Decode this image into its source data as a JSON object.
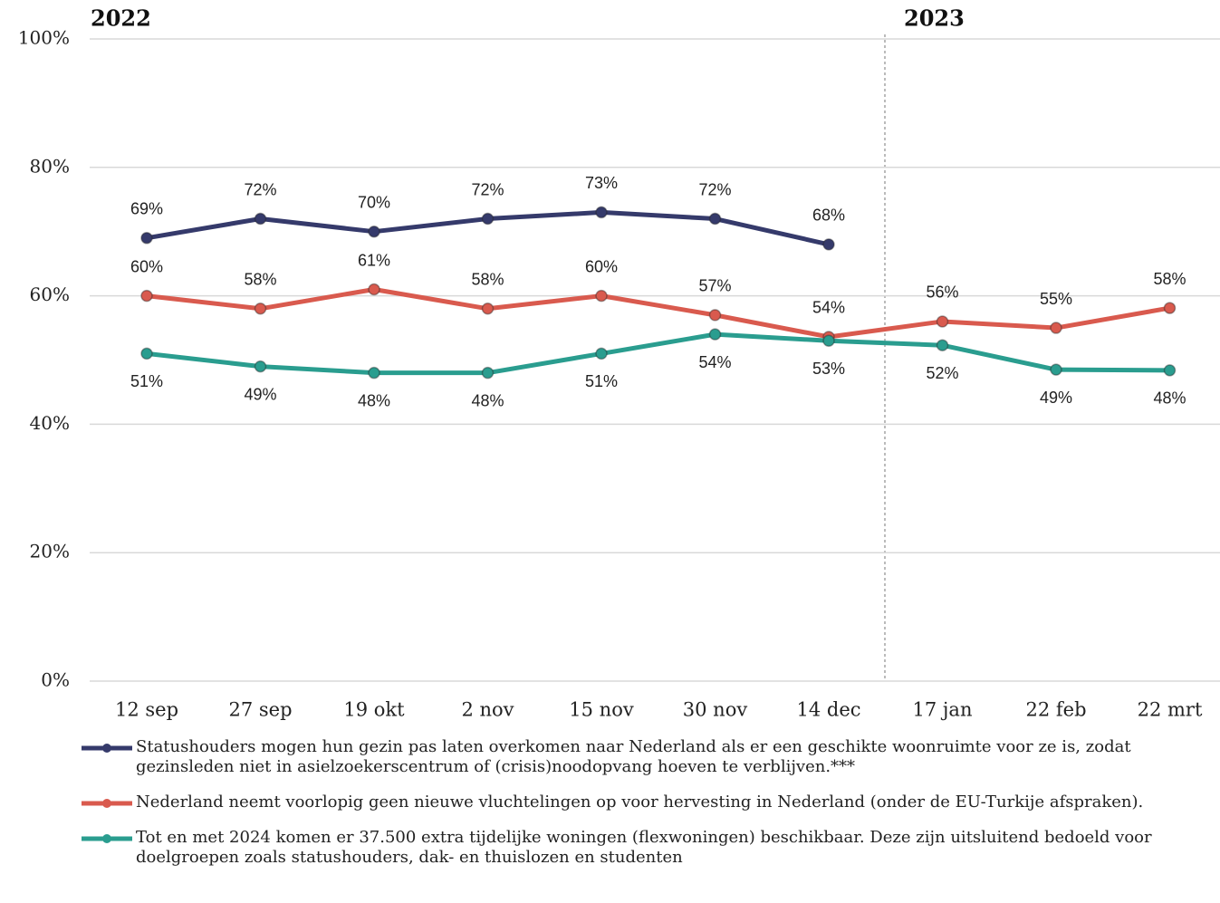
{
  "chart_data": {
    "type": "line",
    "period_labels": [
      "2022",
      "2023"
    ],
    "categories": [
      "12 sep",
      "27 sep",
      "19 okt",
      "2 nov",
      "15 nov",
      "30 nov",
      "14 dec",
      "17 jan",
      "22 feb",
      "22 mrt"
    ],
    "series": [
      {
        "name": "Statushouders mogen hun gezin pas laten overkomen naar Nederland als er een geschikte woonruimte voor ze is, zodat gezinsleden niet in asielzoekerscentrum of (crisis)noodopvang hoeven te verblijven.***",
        "color": "#353a6b",
        "values": [
          69,
          72,
          70,
          72,
          73,
          72,
          68,
          null,
          null,
          null
        ],
        "value_labels": [
          "69%",
          "72%",
          "70%",
          "72%",
          "73%",
          "72%",
          "68%",
          null,
          null,
          null
        ]
      },
      {
        "name": "Nederland neemt voorlopig geen nieuwe vluchtelingen op voor hervesting in Nederland (onder de EU-Turkije afspraken).",
        "color": "#d95a4e",
        "values": [
          60,
          58,
          61,
          58,
          60,
          57,
          53.6,
          56,
          55,
          58.1
        ],
        "value_labels": [
          "60%",
          "58%",
          "61%",
          "58%",
          "60%",
          "57%",
          "54%",
          "56%",
          "55%",
          "58%"
        ]
      },
      {
        "name": "Tot en met 2024 komen er 37.500 extra tijdelijke woningen (flexwoningen) beschikbaar. Deze zijn uitsluitend bedoeld voor doelgroepen zoals statushouders, dak- en thuislozen en studenten",
        "color": "#2a9d8f",
        "values": [
          51,
          49,
          48,
          48,
          51,
          54,
          53,
          52.3,
          48.5,
          48.4
        ],
        "value_labels": [
          "51%",
          "49%",
          "48%",
          "48%",
          "51%",
          "54%",
          "53%",
          "52%",
          "49%",
          "48%"
        ]
      }
    ],
    "ylim": [
      0,
      100
    ],
    "yticks": [
      {
        "value": 0,
        "label": "0%"
      },
      {
        "value": 20,
        "label": "20%"
      },
      {
        "value": 40,
        "label": "40%"
      },
      {
        "value": 60,
        "label": "60%"
      },
      {
        "value": 80,
        "label": "80%"
      },
      {
        "value": 100,
        "label": "100%"
      }
    ],
    "grid": true
  }
}
